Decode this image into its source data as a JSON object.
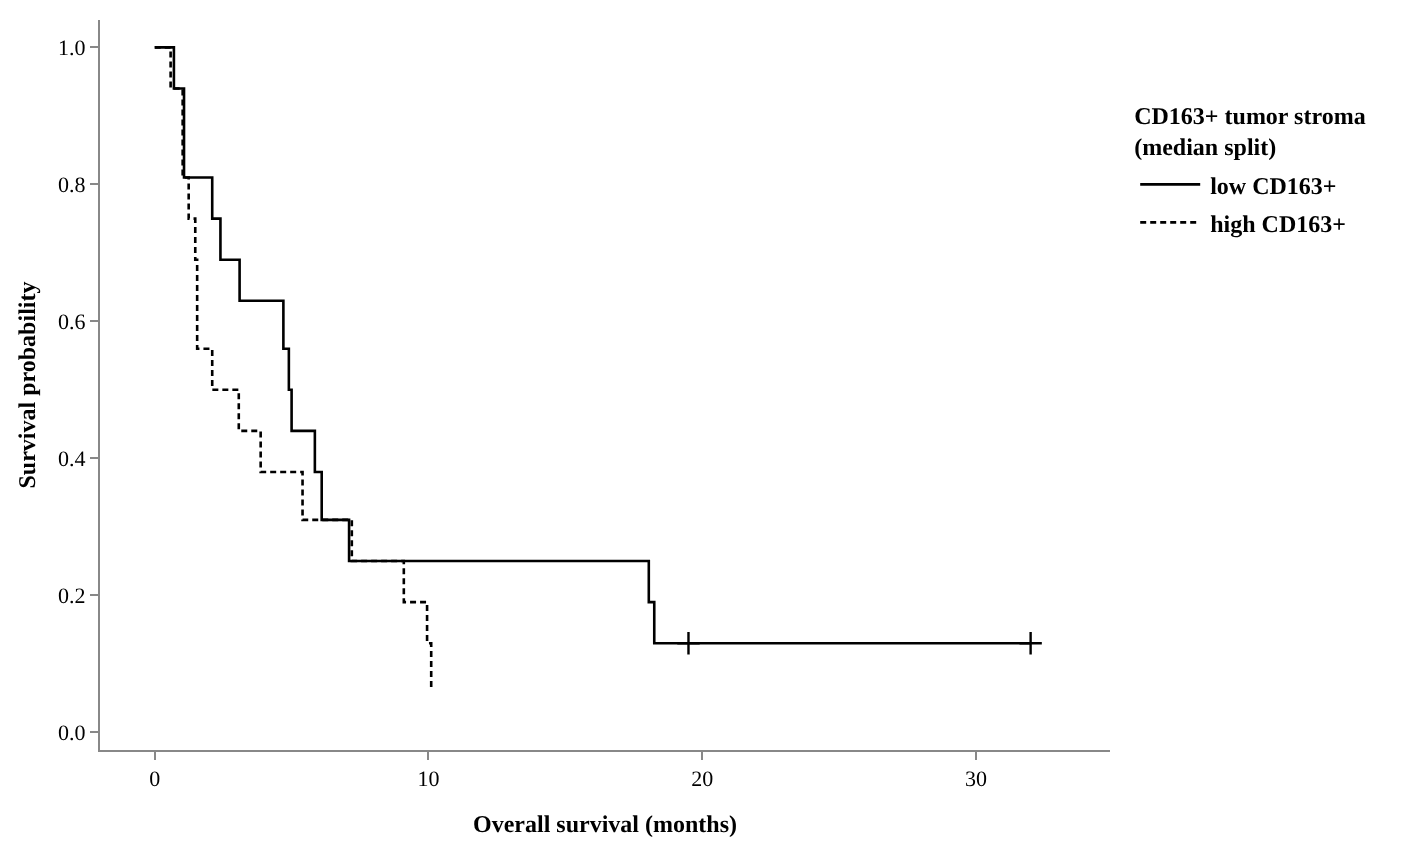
{
  "chart_data": {
    "type": "step",
    "xlabel": "Overall survival (months)",
    "ylabel": "Survival probability",
    "legend_title": "CD163+ tumor stroma\n(median split)",
    "series": [
      {
        "name": "low CD163+",
        "color": "#000000",
        "line_style": "solid",
        "x": [
          0,
          0.7,
          1.07,
          2.1,
          2.4,
          3.1,
          4.7,
          4.9,
          5.0,
          5.85,
          6.1,
          7.1,
          18.05,
          18.25,
          32.0
        ],
        "values": [
          1.0,
          0.94,
          0.81,
          0.75,
          0.69,
          0.63,
          0.56,
          0.5,
          0.44,
          0.38,
          0.31,
          0.25,
          0.19,
          0.13,
          0.13
        ]
      },
      {
        "name": "high CD163+",
        "color": "#000000",
        "line_style": "dashed",
        "x": [
          0,
          0.58,
          1.02,
          1.24,
          1.48,
          1.55,
          2.1,
          3.07,
          3.87,
          5.4,
          7.2,
          9.1,
          9.95,
          10.1
        ],
        "values": [
          1.0,
          0.94,
          0.81,
          0.75,
          0.69,
          0.56,
          0.5,
          0.44,
          0.38,
          0.31,
          0.25,
          0.19,
          0.13,
          0.06
        ]
      },
      {
        "type": "scatter",
        "color": "#000000",
        "marker": "cross",
        "x": [
          19.5,
          32.0
        ],
        "values": [
          0.13,
          0.13
        ]
      }
    ],
    "xlim": [
      -2,
      34.9
    ],
    "xticks": [
      0,
      10,
      20,
      30
    ],
    "ylim": [
      -0.026,
      1.04
    ],
    "yticks": [
      {
        "value": 0,
        "label": "0.0"
      },
      {
        "value": 0.2,
        "label": "0.2"
      },
      {
        "value": 0.4,
        "label": "0.4"
      },
      {
        "value": 0.6,
        "label": "0.6"
      },
      {
        "value": 0.8,
        "label": "0.8"
      },
      {
        "value": 1.0,
        "label": "1.0"
      }
    ],
    "grid": false,
    "legend": "top right"
  }
}
